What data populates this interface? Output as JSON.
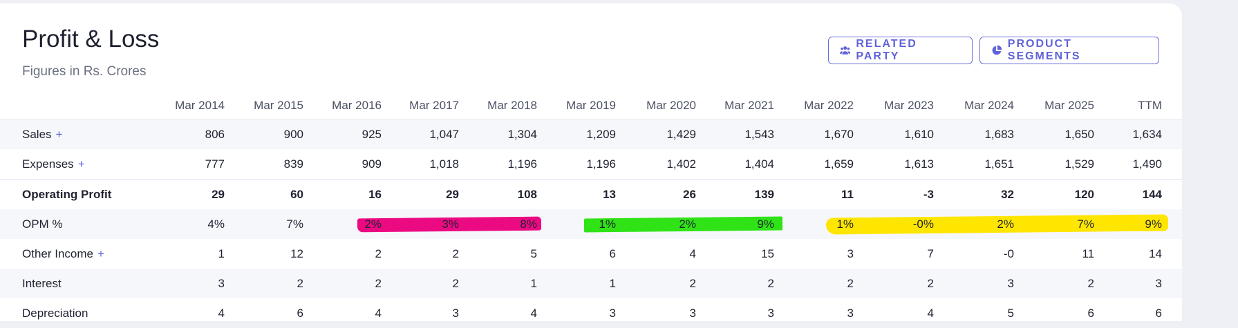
{
  "title": "Profit & Loss",
  "subtitle": "Figures in Rs. Crores",
  "buttons": {
    "related_party": {
      "label": "RELATED PARTY",
      "icon": "users-icon"
    },
    "product_segments": {
      "label": "PRODUCT SEGMENTS",
      "icon": "pie-chart-icon"
    }
  },
  "columns": [
    "Mar 2014",
    "Mar 2015",
    "Mar 2016",
    "Mar 2017",
    "Mar 2018",
    "Mar 2019",
    "Mar 2020",
    "Mar 2021",
    "Mar 2022",
    "Mar 2023",
    "Mar 2024",
    "Mar 2025",
    "TTM"
  ],
  "rows": [
    {
      "label": "Sales",
      "plus": "+",
      "values": [
        "806",
        "900",
        "925",
        "1,047",
        "1,304",
        "1,209",
        "1,429",
        "1,543",
        "1,670",
        "1,610",
        "1,683",
        "1,650",
        "1,634"
      ]
    },
    {
      "label": "Expenses",
      "plus": "+",
      "values": [
        "777",
        "839",
        "909",
        "1,018",
        "1,196",
        "1,196",
        "1,402",
        "1,404",
        "1,659",
        "1,613",
        "1,651",
        "1,529",
        "1,490"
      ]
    },
    {
      "label": "Operating Profit",
      "plus": "",
      "values": [
        "29",
        "60",
        "16",
        "29",
        "108",
        "13",
        "26",
        "139",
        "11",
        "-3",
        "32",
        "120",
        "144"
      ]
    },
    {
      "label": "OPM %",
      "plus": "",
      "values": [
        "4%",
        "7%",
        "2%",
        "3%",
        "8%",
        "1%",
        "2%",
        "9%",
        "1%",
        "-0%",
        "2%",
        "7%",
        "9%"
      ]
    },
    {
      "label": "Other Income",
      "plus": "+",
      "values": [
        "1",
        "12",
        "2",
        "2",
        "5",
        "6",
        "4",
        "15",
        "3",
        "7",
        "-0",
        "11",
        "14"
      ]
    },
    {
      "label": "Interest",
      "plus": "",
      "values": [
        "3",
        "2",
        "2",
        "2",
        "1",
        "1",
        "2",
        "2",
        "2",
        "2",
        "3",
        "2",
        "3"
      ]
    },
    {
      "label": "Depreciation",
      "plus": "",
      "values": [
        "4",
        "6",
        "4",
        "3",
        "4",
        "3",
        "3",
        "3",
        "3",
        "4",
        "5",
        "6",
        "6"
      ]
    }
  ],
  "highlight_colors": {
    "pink": "#ec0a83",
    "green": "#2fe316",
    "yellow": "#ffe600"
  }
}
